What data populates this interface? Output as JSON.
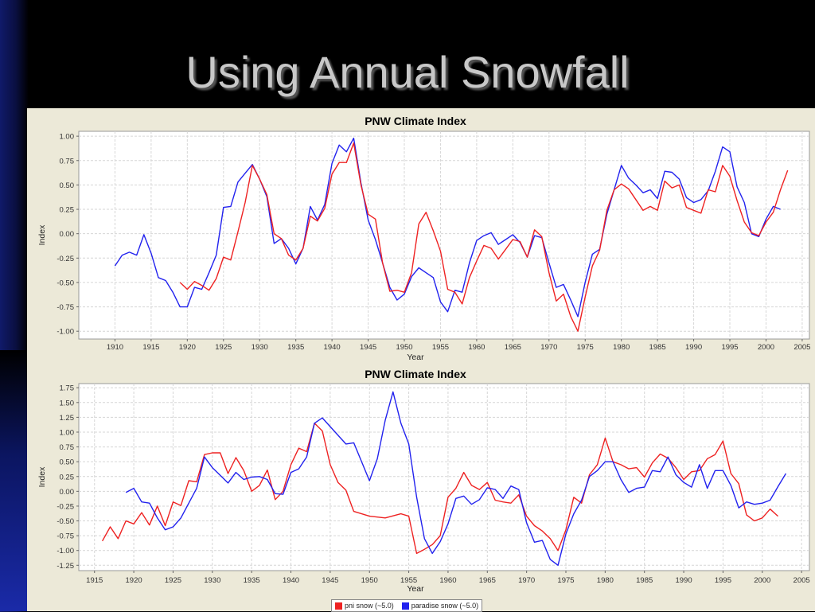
{
  "slide": {
    "title": "Using Annual Snowfall"
  },
  "colors": {
    "red": "#ee2222",
    "blue": "#2222ee",
    "grid": "#d8d8d8",
    "plot_bg": "#ffffff",
    "panel": "#ece9d8"
  },
  "legend": {
    "items": [
      {
        "label": "pni snow (~5.0)",
        "color": "#ee2222"
      },
      {
        "label": "paradise snow (~5.0)",
        "color": "#2222ee"
      }
    ]
  },
  "chart_data": [
    {
      "type": "line",
      "title": "PNW Climate Index",
      "xlabel": "Year",
      "ylabel": "Index",
      "xlim": [
        1905,
        2006
      ],
      "ylim": [
        -1.08,
        1.05
      ],
      "xticks": [
        1910,
        1915,
        1920,
        1925,
        1930,
        1935,
        1940,
        1945,
        1950,
        1955,
        1960,
        1965,
        1970,
        1975,
        1980,
        1985,
        1990,
        1995,
        2000,
        2005
      ],
      "yticks": [
        -1.0,
        -0.75,
        -0.5,
        -0.25,
        0.0,
        0.25,
        0.5,
        0.75,
        1.0
      ],
      "ytick_labels": [
        "-1.00",
        "-0.75",
        "-0.50",
        "-0.25",
        "0.00",
        "0.25",
        "0.50",
        "0.75",
        "1.00"
      ],
      "grid": true,
      "series": [
        {
          "color": "#2222ee",
          "x": [
            1910,
            1911,
            1912,
            1913,
            1914,
            1915,
            1916,
            1917,
            1918,
            1919,
            1920,
            1921,
            1922,
            1923,
            1924,
            1925,
            1926,
            1927,
            1928,
            1929,
            1930,
            1931,
            1932,
            1933,
            1934,
            1935,
            1936,
            1937,
            1938,
            1939,
            1940,
            1941,
            1942,
            1943,
            1944,
            1945,
            1946,
            1947,
            1948,
            1949,
            1950,
            1951,
            1952,
            1953,
            1954,
            1955,
            1956,
            1957,
            1958,
            1959,
            1960,
            1961,
            1962,
            1963,
            1964,
            1965,
            1966,
            1967,
            1968,
            1969,
            1970,
            1971,
            1972,
            1973,
            1974,
            1975,
            1976,
            1977,
            1978,
            1979,
            1980,
            1981,
            1982,
            1983,
            1984,
            1985,
            1986,
            1987,
            1988,
            1989,
            1990,
            1991,
            1992,
            1993,
            1994,
            1995,
            1996,
            1997,
            1998,
            1999,
            2000,
            2001,
            2002
          ],
          "y": [
            -0.33,
            -0.22,
            -0.19,
            -0.22,
            -0.01,
            -0.2,
            -0.45,
            -0.48,
            -0.6,
            -0.75,
            -0.75,
            -0.55,
            -0.57,
            -0.4,
            -0.22,
            0.27,
            0.28,
            0.53,
            0.62,
            0.71,
            0.56,
            0.38,
            -0.1,
            -0.05,
            -0.15,
            -0.31,
            -0.15,
            0.28,
            0.14,
            0.3,
            0.72,
            0.91,
            0.84,
            0.98,
            0.52,
            0.14,
            -0.06,
            -0.3,
            -0.55,
            -0.68,
            -0.62,
            -0.44,
            -0.35,
            -0.4,
            -0.45,
            -0.7,
            -0.8,
            -0.58,
            -0.6,
            -0.3,
            -0.07,
            -0.02,
            0.01,
            -0.11,
            -0.06,
            -0.01,
            -0.09,
            -0.24,
            -0.02,
            -0.04,
            -0.3,
            -0.55,
            -0.52,
            -0.68,
            -0.85,
            -0.5,
            -0.21,
            -0.16,
            0.2,
            0.45,
            0.7,
            0.57,
            0.5,
            0.42,
            0.45,
            0.36,
            0.64,
            0.63,
            0.56,
            0.37,
            0.32,
            0.35,
            0.44,
            0.64,
            0.89,
            0.84,
            0.48,
            0.32,
            0.0,
            -0.03,
            0.15,
            0.28,
            0.25
          ]
        },
        {
          "color": "#ee2222",
          "x": [
            1919,
            1920,
            1921,
            1922,
            1923,
            1924,
            1925,
            1926,
            1927,
            1928,
            1929,
            1930,
            1931,
            1932,
            1933,
            1934,
            1935,
            1936,
            1937,
            1938,
            1939,
            1940,
            1941,
            1942,
            1943,
            1944,
            1945,
            1946,
            1947,
            1948,
            1949,
            1950,
            1951,
            1952,
            1953,
            1954,
            1955,
            1956,
            1957,
            1958,
            1959,
            1960,
            1961,
            1962,
            1963,
            1964,
            1965,
            1966,
            1967,
            1968,
            1969,
            1970,
            1971,
            1972,
            1973,
            1974,
            1975,
            1976,
            1977,
            1978,
            1979,
            1980,
            1981,
            1982,
            1983,
            1984,
            1985,
            1986,
            1987,
            1988,
            1989,
            1990,
            1991,
            1992,
            1993,
            1994,
            1995,
            1996,
            1997,
            1998,
            1999,
            2000,
            2001,
            2002,
            2003
          ],
          "y": [
            -0.5,
            -0.57,
            -0.49,
            -0.53,
            -0.58,
            -0.46,
            -0.24,
            -0.27,
            0.02,
            0.32,
            0.7,
            0.56,
            0.4,
            0.0,
            -0.05,
            -0.22,
            -0.27,
            -0.15,
            0.18,
            0.13,
            0.26,
            0.61,
            0.73,
            0.73,
            0.93,
            0.5,
            0.2,
            0.15,
            -0.3,
            -0.59,
            -0.58,
            -0.6,
            -0.4,
            0.1,
            0.22,
            0.03,
            -0.18,
            -0.57,
            -0.6,
            -0.72,
            -0.45,
            -0.28,
            -0.12,
            -0.15,
            -0.26,
            -0.16,
            -0.06,
            -0.08,
            -0.24,
            0.04,
            -0.03,
            -0.4,
            -0.69,
            -0.62,
            -0.85,
            -1.0,
            -0.65,
            -0.33,
            -0.17,
            0.24,
            0.45,
            0.51,
            0.46,
            0.35,
            0.24,
            0.28,
            0.24,
            0.54,
            0.47,
            0.5,
            0.27,
            0.24,
            0.21,
            0.45,
            0.43,
            0.7,
            0.59,
            0.34,
            0.12,
            0.01,
            -0.02,
            0.12,
            0.22,
            0.45,
            0.65
          ]
        }
      ]
    },
    {
      "type": "line",
      "title": "PNW Climate Index",
      "xlabel": "Year",
      "ylabel": "Index",
      "xlim": [
        1913,
        2006
      ],
      "ylim": [
        -1.34,
        1.82
      ],
      "xticks": [
        1915,
        1920,
        1925,
        1930,
        1935,
        1940,
        1945,
        1950,
        1955,
        1960,
        1965,
        1970,
        1975,
        1980,
        1985,
        1990,
        1995,
        2000,
        2005
      ],
      "yticks": [
        -1.25,
        -1.0,
        -0.75,
        -0.5,
        -0.25,
        0.0,
        0.25,
        0.5,
        0.75,
        1.0,
        1.25,
        1.5,
        1.75
      ],
      "ytick_labels": [
        "-1.25",
        "-1.00",
        "-0.75",
        "-0.50",
        "-0.25",
        "0.00",
        "0.25",
        "0.50",
        "0.75",
        "1.00",
        "1.25",
        "1.50",
        "1.75"
      ],
      "grid": true,
      "series": [
        {
          "color": "#ee2222",
          "x": [
            1916,
            1917,
            1918,
            1919,
            1920,
            1921,
            1922,
            1923,
            1924,
            1925,
            1926,
            1927,
            1928,
            1929,
            1930,
            1931,
            1932,
            1933,
            1934,
            1935,
            1936,
            1937,
            1938,
            1939,
            1940,
            1941,
            1942,
            1943,
            1944,
            1945,
            1946,
            1947,
            1948,
            1950,
            1952,
            1954,
            1955,
            1956,
            1957,
            1958,
            1959,
            1960,
            1961,
            1962,
            1963,
            1964,
            1965,
            1966,
            1967,
            1968,
            1969,
            1970,
            1971,
            1972,
            1973,
            1974,
            1975,
            1976,
            1977,
            1978,
            1979,
            1980,
            1981,
            1982,
            1983,
            1984,
            1985,
            1986,
            1987,
            1988,
            1989,
            1990,
            1991,
            1992,
            1993,
            1994,
            1995,
            1996,
            1997,
            1998,
            1999,
            2000,
            2001,
            2002
          ],
          "y": [
            -0.84,
            -0.6,
            -0.8,
            -0.5,
            -0.55,
            -0.36,
            -0.57,
            -0.25,
            -0.58,
            -0.18,
            -0.24,
            0.18,
            0.16,
            0.62,
            0.65,
            0.65,
            0.3,
            0.57,
            0.35,
            0.0,
            0.1,
            0.36,
            -0.14,
            0.0,
            0.45,
            0.73,
            0.67,
            1.15,
            1.02,
            0.45,
            0.15,
            0.02,
            -0.34,
            -0.42,
            -0.45,
            -0.38,
            -0.42,
            -1.05,
            -0.98,
            -0.9,
            -0.75,
            -0.1,
            0.05,
            0.32,
            0.1,
            0.03,
            0.15,
            -0.15,
            -0.18,
            -0.2,
            -0.06,
            -0.42,
            -0.58,
            -0.67,
            -0.8,
            -1.0,
            -0.65,
            -0.1,
            -0.2,
            0.28,
            0.45,
            0.9,
            0.5,
            0.45,
            0.38,
            0.4,
            0.24,
            0.48,
            0.63,
            0.56,
            0.4,
            0.2,
            0.33,
            0.35,
            0.55,
            0.62,
            0.85,
            0.3,
            0.13,
            -0.4,
            -0.5,
            -0.45,
            -0.3,
            -0.42
          ]
        },
        {
          "color": "#2222ee",
          "x": [
            1919,
            1920,
            1921,
            1922,
            1923,
            1924,
            1925,
            1926,
            1927,
            1928,
            1929,
            1930,
            1931,
            1932,
            1933,
            1934,
            1935,
            1936,
            1937,
            1938,
            1939,
            1940,
            1941,
            1942,
            1943,
            1944,
            1947,
            1948,
            1950,
            1951,
            1952,
            1953,
            1954,
            1955,
            1956,
            1957,
            1958,
            1959,
            1960,
            1961,
            1962,
            1963,
            1964,
            1965,
            1966,
            1967,
            1968,
            1969,
            1970,
            1971,
            1972,
            1973,
            1974,
            1975,
            1976,
            1977,
            1978,
            1979,
            1980,
            1981,
            1982,
            1983,
            1984,
            1985,
            1986,
            1987,
            1988,
            1989,
            1990,
            1991,
            1992,
            1993,
            1994,
            1995,
            1996,
            1997,
            1998,
            1999,
            2000,
            2001,
            2002,
            2003
          ],
          "y": [
            -0.02,
            0.05,
            -0.18,
            -0.2,
            -0.45,
            -0.65,
            -0.6,
            -0.45,
            -0.2,
            0.05,
            0.58,
            0.4,
            0.27,
            0.14,
            0.32,
            0.2,
            0.24,
            0.25,
            0.2,
            -0.04,
            -0.05,
            0.32,
            0.38,
            0.58,
            1.15,
            1.24,
            0.8,
            0.82,
            0.18,
            0.55,
            1.2,
            1.68,
            1.15,
            0.8,
            -0.1,
            -0.8,
            -1.05,
            -0.85,
            -0.55,
            -0.12,
            -0.08,
            -0.22,
            -0.14,
            0.06,
            0.03,
            -0.12,
            0.09,
            0.03,
            -0.53,
            -0.86,
            -0.83,
            -1.15,
            -1.25,
            -0.72,
            -0.38,
            -0.15,
            0.25,
            0.35,
            0.5,
            0.5,
            0.2,
            -0.02,
            0.05,
            0.07,
            0.35,
            0.33,
            0.58,
            0.28,
            0.15,
            0.07,
            0.45,
            0.05,
            0.35,
            0.35,
            0.1,
            -0.28,
            -0.18,
            -0.22,
            -0.2,
            -0.15,
            0.08,
            0.3
          ]
        }
      ]
    }
  ]
}
